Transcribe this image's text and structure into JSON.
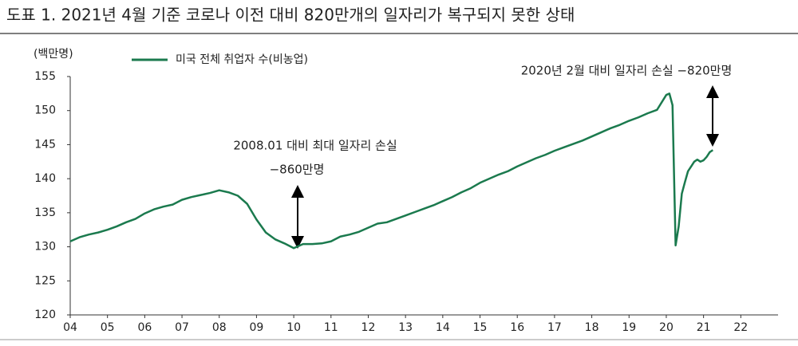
{
  "chart_data": {
    "type": "line",
    "title": "도표 1. 2021년 4월 기준 코로나 이전 대비 820만개의 일자리가 복구되지 못한 상태",
    "y_label": "(백만명)",
    "annotations": [
      "2008.01 대비 최대 일자리 손실",
      "−860만명",
      "2020년 2월 대비 일자리 손실 −820만명"
    ],
    "x": [
      2004,
      2004.25,
      2004.5,
      2004.75,
      2005,
      2005.25,
      2005.5,
      2005.75,
      2006,
      2006.25,
      2006.5,
      2006.75,
      2007,
      2007.25,
      2007.5,
      2007.75,
      2008,
      2008.25,
      2008.5,
      2008.75,
      2009,
      2009.25,
      2009.5,
      2009.75,
      2010,
      2010.25,
      2010.5,
      2010.75,
      2011,
      2011.25,
      2011.5,
      2011.75,
      2012,
      2012.25,
      2012.5,
      2012.75,
      2013,
      2013.25,
      2013.5,
      2013.75,
      2014,
      2014.25,
      2014.5,
      2014.75,
      2015,
      2015.25,
      2015.5,
      2015.75,
      2016,
      2016.25,
      2016.5,
      2016.75,
      2017,
      2017.25,
      2017.5,
      2017.75,
      2018,
      2018.25,
      2018.5,
      2018.75,
      2019,
      2019.25,
      2019.5,
      2019.75,
      2020,
      2020.083,
      2020.167,
      2020.25,
      2020.333,
      2020.417,
      2020.5,
      2020.583,
      2020.667,
      2020.75,
      2020.833,
      2020.917,
      2021,
      2021.083,
      2021.167,
      2021.25
    ],
    "series": [
      {
        "name": "미국 전체 취업자 수(비농업)",
        "color": "#1b7a4e",
        "values": [
          130.8,
          131.4,
          131.8,
          132.1,
          132.5,
          133.0,
          133.6,
          134.1,
          134.9,
          135.5,
          135.9,
          136.2,
          136.9,
          137.3,
          137.6,
          137.9,
          138.3,
          138.0,
          137.5,
          136.3,
          134.0,
          132.1,
          131.1,
          130.5,
          129.8,
          130.4,
          130.4,
          130.5,
          130.8,
          131.5,
          131.8,
          132.2,
          132.8,
          133.4,
          133.6,
          134.1,
          134.6,
          135.1,
          135.6,
          136.1,
          136.7,
          137.3,
          138.0,
          138.6,
          139.4,
          140.0,
          140.6,
          141.1,
          141.8,
          142.4,
          143.0,
          143.5,
          144.1,
          144.6,
          145.1,
          145.6,
          146.2,
          146.8,
          147.4,
          147.9,
          148.5,
          149.0,
          149.6,
          150.1,
          152.3,
          152.5,
          150.8,
          130.2,
          133.0,
          137.8,
          139.5,
          141.1,
          141.8,
          142.5,
          142.8,
          142.5,
          142.7,
          143.2,
          143.9,
          144.2
        ]
      }
    ],
    "xlim": [
      2004,
      2023
    ],
    "xticks": [
      {
        "value": 2004,
        "label": "04"
      },
      {
        "value": 2005,
        "label": "05"
      },
      {
        "value": 2006,
        "label": "06"
      },
      {
        "value": 2007,
        "label": "07"
      },
      {
        "value": 2008,
        "label": "08"
      },
      {
        "value": 2009,
        "label": "09"
      },
      {
        "value": 2010,
        "label": "10"
      },
      {
        "value": 2011,
        "label": "11"
      },
      {
        "value": 2012,
        "label": "12"
      },
      {
        "value": 2013,
        "label": "13"
      },
      {
        "value": 2014,
        "label": "14"
      },
      {
        "value": 2015,
        "label": "15"
      },
      {
        "value": 2016,
        "label": "16"
      },
      {
        "value": 2017,
        "label": "17"
      },
      {
        "value": 2018,
        "label": "18"
      },
      {
        "value": 2019,
        "label": "19"
      },
      {
        "value": 2020,
        "label": "20"
      },
      {
        "value": 2021,
        "label": "21"
      },
      {
        "value": 2022,
        "label": "22"
      }
    ],
    "ylim": [
      120,
      155
    ],
    "yticks": [
      120,
      125,
      130,
      135,
      140,
      145,
      150,
      155
    ],
    "grid": false,
    "legend": "top-left"
  }
}
